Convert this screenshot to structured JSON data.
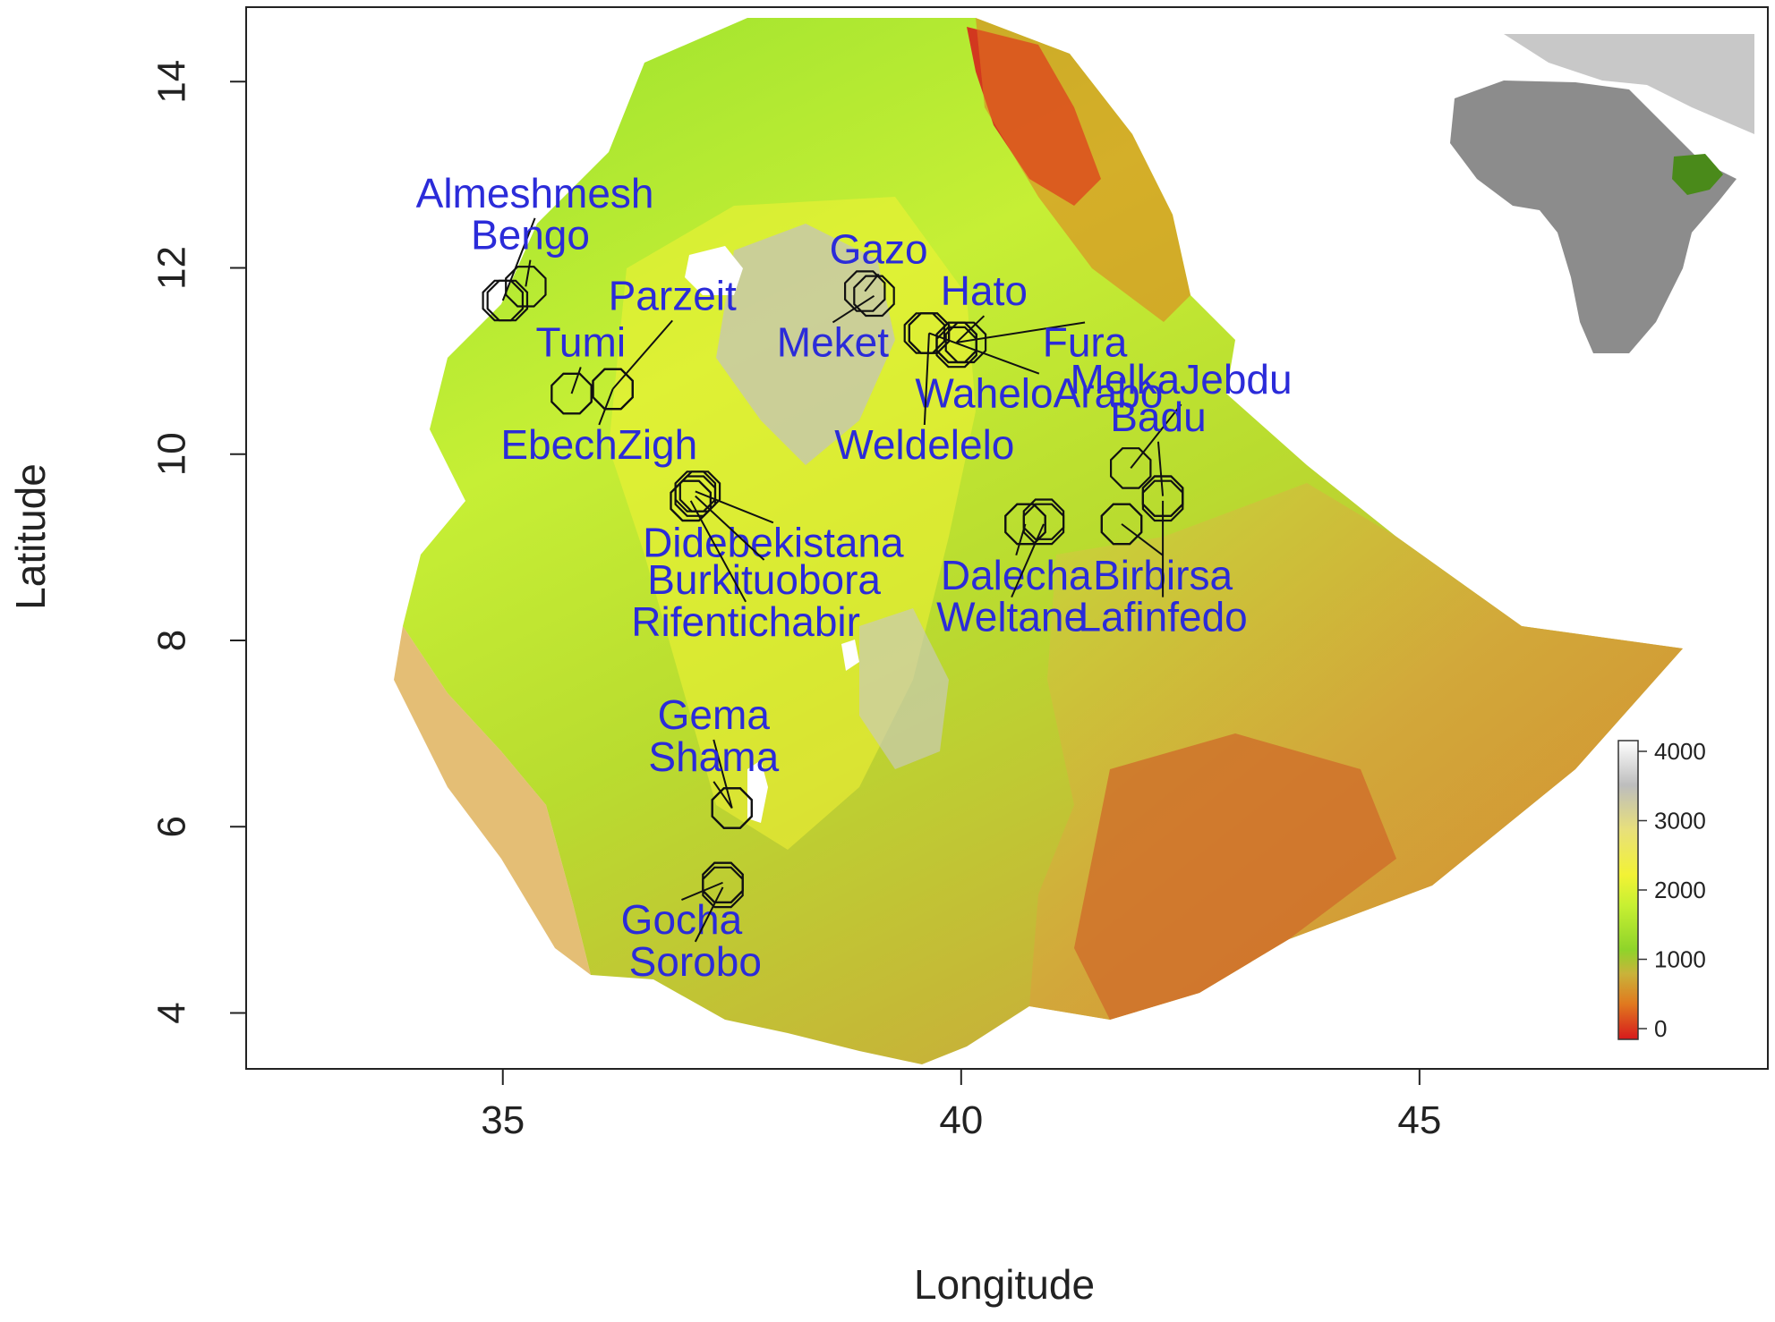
{
  "map": {
    "xlabel": "Longitude",
    "ylabel": "Latitude",
    "x_ticks": [
      35,
      40,
      45
    ],
    "y_ticks": [
      4,
      6,
      8,
      10,
      12,
      14
    ],
    "xlim": [
      32.2,
      48.8
    ],
    "ylim": [
      3.4,
      14.8
    ],
    "elevation_legend": {
      "ticks": [
        0,
        1000,
        2000,
        3000,
        4000
      ],
      "colors": [
        "#d7191c",
        "#e07a1f",
        "#c9b33a",
        "#8fd42a",
        "#c8f032",
        "#f2f235",
        "#e8e07a",
        "#bdbdbd",
        "#ffffff"
      ]
    },
    "inset": {
      "highlight_color": "#4a8a1a",
      "land_color": "#8c8c8c",
      "other_land_color": "#c8c8c8"
    },
    "label_color": "#2b2bd9",
    "sites": [
      {
        "name": "Almeshmesh",
        "lon": 35.0,
        "lat": 11.65,
        "lx": 35.35,
        "ly": 12.65
      },
      {
        "name": "Bengo",
        "lon": 35.25,
        "lat": 11.8,
        "lx": 35.3,
        "ly": 12.2
      },
      {
        "name": "Parzeit",
        "lon": 36.2,
        "lat": 10.7,
        "lx": 36.85,
        "ly": 11.55
      },
      {
        "name": "Tumi",
        "lon": 35.75,
        "lat": 10.65,
        "lx": 35.85,
        "ly": 11.05
      },
      {
        "name": "EbechZigh",
        "lon": 36.2,
        "lat": 10.7,
        "lx": 36.05,
        "ly": 9.95
      },
      {
        "name": "Gazo",
        "lon": 38.95,
        "lat": 11.75,
        "lx": 39.1,
        "ly": 12.05
      },
      {
        "name": "Meket",
        "lon": 39.05,
        "lat": 11.7,
        "lx": 38.6,
        "ly": 11.05
      },
      {
        "name": "Hato",
        "lon": 39.95,
        "lat": 11.2,
        "lx": 40.25,
        "ly": 11.6
      },
      {
        "name": "Fura",
        "lon": 39.95,
        "lat": 11.2,
        "lx": 41.35,
        "ly": 11.05
      },
      {
        "name": "WaheloArabo",
        "lon": 39.65,
        "lat": 11.3,
        "lx": 40.85,
        "ly": 10.5
      },
      {
        "name": "Weldelelo",
        "lon": 39.65,
        "lat": 11.3,
        "lx": 39.6,
        "ly": 9.95
      },
      {
        "name": "MelkaJebdu",
        "lon": 41.85,
        "lat": 9.85,
        "lx": 42.4,
        "ly": 10.65
      },
      {
        "name": "Badu",
        "lon": 42.2,
        "lat": 9.55,
        "lx": 42.15,
        "ly": 10.25
      },
      {
        "name": "Didebekistana",
        "lon": 37.1,
        "lat": 9.6,
        "lx": 37.95,
        "ly": 8.9
      },
      {
        "name": "Burkituobora",
        "lon": 37.1,
        "lat": 9.55,
        "lx": 37.85,
        "ly": 8.5
      },
      {
        "name": "Rifentichabir",
        "lon": 37.05,
        "lat": 9.5,
        "lx": 37.65,
        "ly": 8.05
      },
      {
        "name": "Dalecha",
        "lon": 40.7,
        "lat": 9.25,
        "lx": 40.6,
        "ly": 8.55
      },
      {
        "name": "Birbirsa",
        "lon": 41.75,
        "lat": 9.25,
        "lx": 42.2,
        "ly": 8.55
      },
      {
        "name": "Weltane",
        "lon": 40.9,
        "lat": 9.25,
        "lx": 40.55,
        "ly": 8.1
      },
      {
        "name": "Lafinfedo",
        "lon": 42.2,
        "lat": 9.5,
        "lx": 42.2,
        "ly": 8.1
      },
      {
        "name": "Gema",
        "lon": 37.5,
        "lat": 6.2,
        "lx": 37.3,
        "ly": 7.05
      },
      {
        "name": "Shama",
        "lon": 37.5,
        "lat": 6.2,
        "lx": 37.3,
        "ly": 6.6
      },
      {
        "name": "Gocha",
        "lon": 37.4,
        "lat": 5.4,
        "lx": 36.95,
        "ly": 4.85
      },
      {
        "name": "Sorobo",
        "lon": 37.4,
        "lat": 5.35,
        "lx": 37.1,
        "ly": 4.4
      }
    ],
    "extra_markers": [
      {
        "lon": 35.05,
        "lat": 11.65
      },
      {
        "lon": 39.6,
        "lat": 11.3
      },
      {
        "lon": 39.95,
        "lat": 11.15
      },
      {
        "lon": 40.05,
        "lat": 11.2
      },
      {
        "lon": 37.15,
        "lat": 9.6
      },
      {
        "lon": 37.05,
        "lat": 9.5
      },
      {
        "lon": 40.7,
        "lat": 9.25
      },
      {
        "lon": 40.9,
        "lat": 9.3
      },
      {
        "lon": 41.75,
        "lat": 9.25
      },
      {
        "lon": 42.2,
        "lat": 9.55
      },
      {
        "lon": 37.4,
        "lat": 5.4
      },
      {
        "lon": 37.5,
        "lat": 6.2
      },
      {
        "lon": 35.75,
        "lat": 10.65
      },
      {
        "lon": 36.2,
        "lat": 10.7
      }
    ]
  }
}
